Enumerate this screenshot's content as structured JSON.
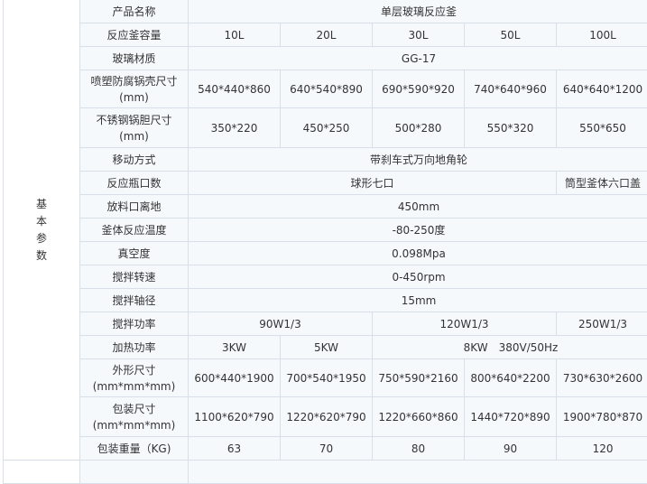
{
  "side_label": [
    "基",
    "本",
    "参",
    "数"
  ],
  "rows": {
    "name": {
      "label": "产品名称",
      "value": "单层玻璃反应釜"
    },
    "capacity": {
      "label": "反应釜容量",
      "values": [
        "10L",
        "20L",
        "30L",
        "50L",
        "100L"
      ]
    },
    "glass": {
      "label": "玻璃材质",
      "value": "GG-17"
    },
    "shell": {
      "label": "喷塑防腐锅壳尺寸",
      "unit": "(mm)",
      "values": [
        "540*440*860",
        "640*540*890",
        "690*590*920",
        "740*640*960",
        "640*640*1200"
      ]
    },
    "liner": {
      "label": "不锈钢锅胆尺寸",
      "unit": "(mm)",
      "values": [
        "350*220",
        "450*250",
        "500*280",
        "550*320",
        "550*650"
      ]
    },
    "move": {
      "label": "移动方式",
      "value": "带刹车式万向地角轮"
    },
    "ports": {
      "label": "反应瓶口数",
      "values": [
        "球形七口",
        "筒型釜体六口盖"
      ]
    },
    "outlet": {
      "label": "放料口离地",
      "value": "450mm"
    },
    "temp": {
      "label": "釜体反应温度",
      "value": "-80-250度"
    },
    "vacuum": {
      "label": "真空度",
      "value": "0.098Mpa"
    },
    "speed": {
      "label": "搅拌转速",
      "value": "0-450rpm"
    },
    "shaft": {
      "label": "搅拌轴径",
      "value": "15mm"
    },
    "stir_power": {
      "label": "搅拌功率",
      "values": [
        "90W1/3",
        "120W1/3",
        "250W1/3"
      ]
    },
    "heat": {
      "label": "加热功率",
      "values": [
        "3KW",
        "5KW",
        "8KW　380V/50Hz"
      ]
    },
    "outer": {
      "label": "外形尺寸",
      "unit": "(mm*mm*mm)",
      "values": [
        "600*440*1900",
        "700*540*1950",
        "750*590*2160",
        "800*640*2200",
        "730*630*2600"
      ]
    },
    "pack": {
      "label": "包装尺寸",
      "unit": "(mm*mm*mm)",
      "values": [
        "1100*620*790",
        "1220*620*790",
        "1220*660*860",
        "1440*720*890",
        "1900*780*870"
      ]
    },
    "weight": {
      "label": "包装重量（KG)",
      "values": [
        "63",
        "70",
        "80",
        "90",
        "120"
      ]
    }
  }
}
